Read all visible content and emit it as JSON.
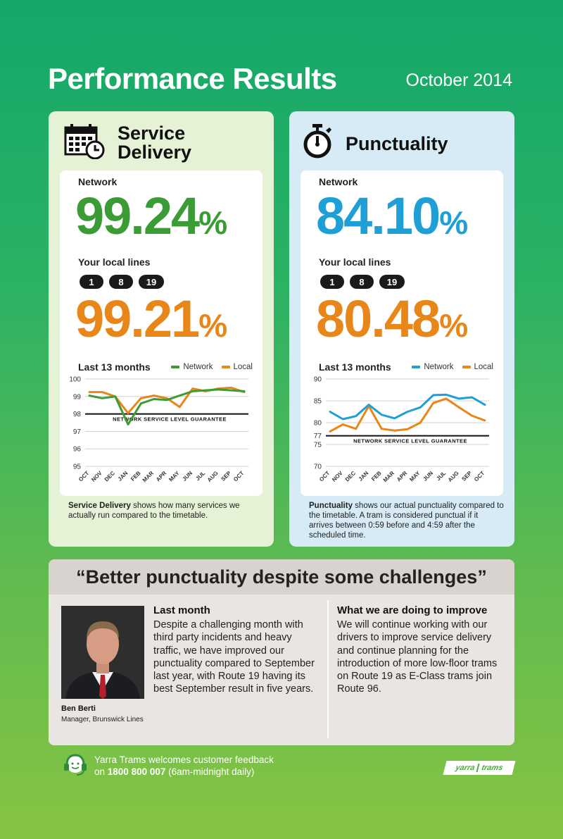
{
  "header": {
    "title": "Performance Results",
    "date": "October 2014"
  },
  "service_delivery": {
    "title_line1": "Service",
    "title_line2": "Delivery",
    "icon": "calendar-clock-icon",
    "network_label": "Network",
    "network_value": "99.24",
    "local_label": "Your local lines",
    "routes": [
      "1",
      "8",
      "19"
    ],
    "local_value": "99.21",
    "percent_sign": "%",
    "chart_title": "Last 13 months",
    "legend_network": "Network",
    "legend_local": "Local",
    "guarantee_label": "NETWORK SERVICE LEVEL GUARANTEE",
    "desc_bold": "Service Delivery",
    "desc_rest": " shows how many services we actually run compared to the timetable.",
    "colors": {
      "network": "#3d9c33",
      "local": "#e8861a"
    }
  },
  "punctuality": {
    "title": "Punctuality",
    "icon": "stopwatch-icon",
    "network_label": "Network",
    "network_value": "84.10",
    "local_label": "Your local lines",
    "routes": [
      "1",
      "8",
      "19"
    ],
    "local_value": "80.48",
    "percent_sign": "%",
    "chart_title": "Last 13 months",
    "legend_network": "Network",
    "legend_local": "Local",
    "guarantee_label": "NETWORK SERVICE LEVEL GUARANTEE",
    "desc_bold": "Punctuality",
    "desc_rest": " shows our actual punctuality compared to the timetable. A tram is considered punctual if it arrives between 0:59 before and 4:59 after the scheduled time.",
    "colors": {
      "network": "#1e9fd6",
      "local": "#e8861a"
    }
  },
  "chart_data": [
    {
      "type": "line",
      "x": [
        "OCT",
        "NOV",
        "DEC",
        "JAN",
        "FEB",
        "MAR",
        "APR",
        "MAY",
        "JUN",
        "JUL",
        "AUG",
        "SEP",
        "OCT"
      ],
      "yticks": [
        95,
        96,
        97,
        98,
        99,
        100
      ],
      "ylim": [
        95,
        100
      ],
      "guarantee": 98,
      "series": [
        {
          "name": "Network",
          "values": [
            99.05,
            98.9,
            99.0,
            97.4,
            98.6,
            98.85,
            98.8,
            99.05,
            99.3,
            99.35,
            99.4,
            99.35,
            99.3
          ]
        },
        {
          "name": "Local",
          "values": [
            99.25,
            99.25,
            99.0,
            98.05,
            98.9,
            99.05,
            98.9,
            98.4,
            99.45,
            99.3,
            99.45,
            99.5,
            99.25
          ]
        }
      ]
    },
    {
      "type": "line",
      "x": [
        "OCT",
        "NOV",
        "DEC",
        "JAN",
        "FEB",
        "MAR",
        "APR",
        "MAY",
        "JUN",
        "JUL",
        "AUG",
        "SEP",
        "OCT"
      ],
      "yticks": [
        70,
        75,
        77,
        80,
        85,
        90
      ],
      "ylim": [
        70,
        90
      ],
      "guarantee": 77,
      "series": [
        {
          "name": "Network",
          "values": [
            82.5,
            80.8,
            81.5,
            84.1,
            81.8,
            81.0,
            82.5,
            83.5,
            86.3,
            86.4,
            85.5,
            85.8,
            84.1
          ]
        },
        {
          "name": "Local",
          "values": [
            78.0,
            79.6,
            78.6,
            83.8,
            78.6,
            78.2,
            78.5,
            80.0,
            84.5,
            85.5,
            83.5,
            81.6,
            80.5
          ]
        }
      ]
    }
  ],
  "quote": {
    "text": "“Better punctuality despite some challenges”",
    "person_name": "Ben Berti",
    "person_role": "Manager, Brunswick Lines",
    "left_heading": "Last month",
    "left_text": "Despite a challenging month with third party incidents and heavy traffic, we have improved our punctuality compared to September last year, with Route 19 having its best September result in five years.",
    "right_heading": "What we are doing to improve",
    "right_text": "We will continue working with our drivers to improve service delivery and continue planning for the introduction of more low-floor trams on Route 19 as E-Class trams join Route 96."
  },
  "footer": {
    "icon": "headset-icon",
    "line1": "Yarra Trams welcomes customer feedback",
    "line2_pre": "on ",
    "phone": "1800 800 007",
    "line2_post": " (6am-midnight daily)",
    "logo_word1": "yarra",
    "logo_word2": "trams"
  }
}
